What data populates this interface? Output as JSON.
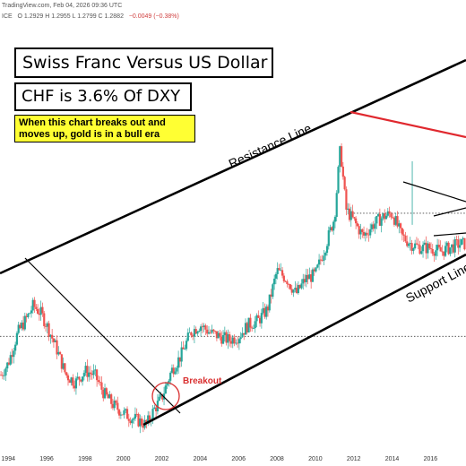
{
  "header": {
    "source": "TradingView.com",
    "date_line": "Feb 04, 2026 09:36 UTC",
    "exchange": "ICE",
    "ohlc": "O 1.2929  H 1.2955  L 1.2799  C 1.2882",
    "change": "−0.0049 (−0.38%)"
  },
  "title_box": "Swiss Franc Versus US Dollar",
  "subtitle_box": "CHF is 3.6% Of DXY",
  "note_lines": [
    "When this chart breaks out and",
    "moves up, gold is in a bull era"
  ],
  "colors": {
    "up": "#26a69a",
    "down": "#ef5350",
    "red_line": "#e0282e",
    "trend": "#000000",
    "note_bg": "#ffff33"
  },
  "chart_data": {
    "type": "line",
    "title": "Swiss Franc Versus US Dollar",
    "subtitle": "CHF is 3.6% Of DXY",
    "xlabel": "",
    "ylabel": "",
    "grid": false,
    "x_tick_labels": [
      "1994",
      "1996",
      "1998",
      "2000",
      "2002",
      "2004",
      "2006",
      "2008",
      "2010",
      "2012",
      "2014",
      "2016"
    ],
    "series": [
      {
        "name": "",
        "x": [
          1993.5,
          1994.0,
          1994.5,
          1995.0,
          1995.3,
          1995.7,
          1996.0,
          1996.5,
          1997.0,
          1997.5,
          1998.0,
          1998.5,
          1999.0,
          1999.5,
          2000.0,
          2000.4,
          2000.8,
          2001.2,
          2001.6,
          2002.0,
          2002.5,
          2003.0,
          2003.5,
          2004.0,
          2004.5,
          2005.0,
          2005.5,
          2006.0,
          2006.5,
          2007.0,
          2007.5,
          2008.0,
          2008.5,
          2009.0,
          2009.5,
          2010.0,
          2010.5,
          2011.0,
          2011.3,
          2011.6,
          2012.0,
          2012.5,
          2013.0,
          2013.5,
          2014.0,
          2014.5,
          2015.0,
          2015.5,
          2016.0,
          2016.5,
          2017.0,
          2017.5
        ],
        "y": [
          0.68,
          0.72,
          0.8,
          0.84,
          0.87,
          0.85,
          0.82,
          0.76,
          0.69,
          0.67,
          0.7,
          0.69,
          0.64,
          0.61,
          0.59,
          0.58,
          0.57,
          0.56,
          0.6,
          0.63,
          0.7,
          0.74,
          0.8,
          0.82,
          0.8,
          0.79,
          0.78,
          0.79,
          0.82,
          0.83,
          0.86,
          0.96,
          0.94,
          0.9,
          0.94,
          0.95,
          1.02,
          1.1,
          1.28,
          1.12,
          1.09,
          1.05,
          1.08,
          1.1,
          1.11,
          1.05,
          1.03,
          1.02,
          1.02,
          1.01,
          1.02,
          1.03
        ]
      }
    ],
    "annotations": {
      "resistance_label": "Resistance Line",
      "support_label": "Support Line",
      "breakout_label": "Breakout",
      "horizontal_levels": [
        0.79,
        1.11
      ]
    }
  }
}
